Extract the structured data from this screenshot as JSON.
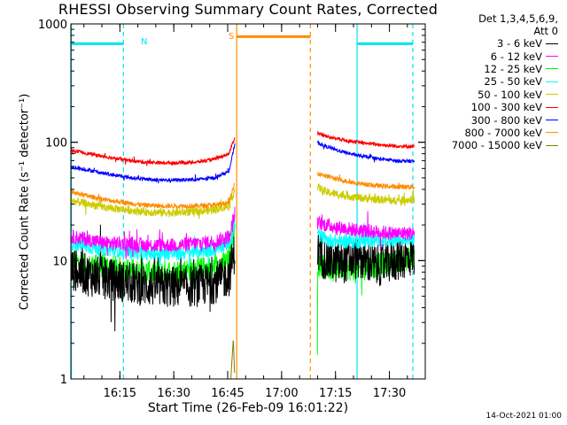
{
  "chart_data": {
    "type": "line",
    "title": "RHESSI Observing Summary Count Rates, Corrected",
    "xlabel": "Start Time (26-Feb-09 16:01:22)",
    "ylabel": "Corrected Count Rate (s⁻¹ detector⁻¹)",
    "yscale": "log",
    "ylim": [
      1,
      1000
    ],
    "yticks": [
      "1",
      "10",
      "100",
      "1000"
    ],
    "xlim_minutes_from_start": [
      0,
      98.6
    ],
    "xticks": [
      "16:15",
      "16:30",
      "16:45",
      "17:00",
      "17:15",
      "17:30"
    ],
    "legend_header": [
      "Det 1,3,4,5,6,9,",
      "Att 0"
    ],
    "legend_position": "right",
    "flag_markers": [
      {
        "label": "N",
        "color": "#00e5ee"
      },
      {
        "label": "S",
        "color": "#ff8c00"
      }
    ],
    "flag_lines": [
      {
        "name": "night-band",
        "color": "#00e5ee",
        "level": 680,
        "start": "16:01:22",
        "end": "16:16:00"
      },
      {
        "name": "saa-band",
        "color": "#ff8c00",
        "level": 780,
        "start": "16:47:30",
        "end": "17:08:00"
      },
      {
        "name": "night-band-2",
        "color": "#00e5ee",
        "level": 680,
        "start": "17:21:00",
        "end": "17:36:30"
      }
    ],
    "vertical_markers": [
      {
        "time": "16:01:30",
        "color": "#00e5ee",
        "style": "solid"
      },
      {
        "time": "16:16:00",
        "color": "#00e5ee",
        "style": "dashed"
      },
      {
        "time": "16:47:30",
        "color": "#ff8c00",
        "style": "solid"
      },
      {
        "time": "17:08:00",
        "color": "#ff8c00",
        "style": "dashed"
      },
      {
        "time": "17:21:00",
        "color": "#00e5ee",
        "style": "solid"
      },
      {
        "time": "17:36:30",
        "color": "#00e5ee",
        "style": "dashed"
      }
    ],
    "segments": [
      {
        "start": "16:01:22",
        "end": "16:46:55"
      },
      {
        "start": "17:10:00",
        "end": "17:37:00"
      }
    ],
    "series": [
      {
        "name": "3 - 6 keV",
        "color": "#000000",
        "points_seg1": [
          [
            0,
            8.5
          ],
          [
            5,
            7.5
          ],
          [
            10,
            7
          ],
          [
            15,
            6.6
          ],
          [
            20,
            6.2
          ],
          [
            25,
            6
          ],
          [
            30,
            6
          ],
          [
            35,
            6.1
          ],
          [
            40,
            6.5
          ],
          [
            44,
            7.5
          ],
          [
            45.6,
            12
          ]
        ],
        "points_seg2": [
          [
            68.6,
            12
          ],
          [
            71,
            10
          ],
          [
            75,
            9.5
          ],
          [
            80,
            10.5
          ],
          [
            85,
            9
          ],
          [
            90,
            10
          ],
          [
            95,
            11
          ],
          [
            95.6,
            11
          ]
        ],
        "noise": 0.18
      },
      {
        "name": "6 - 12 keV",
        "color": "#ff00ff",
        "points_seg1": [
          [
            0,
            16
          ],
          [
            5,
            15
          ],
          [
            10,
            14
          ],
          [
            15,
            14
          ],
          [
            20,
            13.5
          ],
          [
            25,
            13.5
          ],
          [
            30,
            13.5
          ],
          [
            35,
            14
          ],
          [
            40,
            14.5
          ],
          [
            44,
            16
          ],
          [
            45.6,
            25
          ]
        ],
        "points_seg2": [
          [
            68.6,
            21
          ],
          [
            71,
            20
          ],
          [
            75,
            19
          ],
          [
            80,
            18
          ],
          [
            85,
            17.5
          ],
          [
            90,
            17
          ],
          [
            95.6,
            17
          ]
        ],
        "noise": 0.06
      },
      {
        "name": "12 - 25 keV",
        "color": "#00ff00",
        "points_seg1": [
          [
            0,
            10
          ],
          [
            5,
            9
          ],
          [
            10,
            9
          ],
          [
            15,
            8.5
          ],
          [
            20,
            8
          ],
          [
            25,
            8
          ],
          [
            30,
            8.2
          ],
          [
            35,
            8.5
          ],
          [
            40,
            8.8
          ],
          [
            44,
            10
          ],
          [
            45.6,
            22
          ]
        ],
        "points_seg2": [
          [
            68.6,
            2
          ],
          [
            68.7,
            9
          ],
          [
            70,
            9
          ],
          [
            75,
            8.5
          ],
          [
            80,
            8.5
          ],
          [
            85,
            9
          ],
          [
            90,
            10
          ],
          [
            95.6,
            10.5
          ]
        ],
        "noise": 0.1
      },
      {
        "name": "25 - 50 keV",
        "color": "#00ffff",
        "points_seg1": [
          [
            0,
            14
          ],
          [
            5,
            13
          ],
          [
            10,
            12.5
          ],
          [
            15,
            12
          ],
          [
            20,
            11.5
          ],
          [
            25,
            11.5
          ],
          [
            30,
            11.5
          ],
          [
            35,
            12
          ],
          [
            40,
            12.5
          ],
          [
            44,
            14
          ],
          [
            45.6,
            20
          ]
        ],
        "points_seg2": [
          [
            68.6,
            17
          ],
          [
            71,
            15
          ],
          [
            75,
            14.5
          ],
          [
            80,
            14.5
          ],
          [
            85,
            15
          ],
          [
            90,
            15
          ],
          [
            95.6,
            15.5
          ]
        ],
        "noise": 0.06
      },
      {
        "name": "50 - 100 keV",
        "color": "#cccc00",
        "points_seg1": [
          [
            0,
            32
          ],
          [
            5,
            30
          ],
          [
            10,
            28
          ],
          [
            15,
            27
          ],
          [
            20,
            26
          ],
          [
            25,
            25.5
          ],
          [
            30,
            25.5
          ],
          [
            35,
            26
          ],
          [
            40,
            27
          ],
          [
            44,
            29
          ],
          [
            45.6,
            40
          ]
        ],
        "points_seg2": [
          [
            68.6,
            42
          ],
          [
            71,
            38
          ],
          [
            75,
            36
          ],
          [
            80,
            34
          ],
          [
            85,
            33
          ],
          [
            90,
            32
          ],
          [
            95.6,
            33
          ]
        ],
        "noise": 0.035
      },
      {
        "name": "100 - 300 keV",
        "color": "#ff0000",
        "points_seg1": [
          [
            0,
            85
          ],
          [
            5,
            80
          ],
          [
            10,
            75
          ],
          [
            15,
            71
          ],
          [
            20,
            68
          ],
          [
            25,
            67
          ],
          [
            30,
            67
          ],
          [
            35,
            68
          ],
          [
            40,
            72
          ],
          [
            44,
            80
          ],
          [
            45.6,
            110
          ]
        ],
        "points_seg2": [
          [
            68.6,
            120
          ],
          [
            71,
            112
          ],
          [
            75,
            106
          ],
          [
            80,
            100
          ],
          [
            85,
            96
          ],
          [
            90,
            93
          ],
          [
            95.6,
            92
          ]
        ],
        "noise": 0.015
      },
      {
        "name": "300 - 800 keV",
        "color": "#0000ff",
        "points_seg1": [
          [
            0,
            62
          ],
          [
            5,
            58
          ],
          [
            10,
            54
          ],
          [
            15,
            51
          ],
          [
            20,
            49
          ],
          [
            25,
            48
          ],
          [
            30,
            48
          ],
          [
            35,
            48.5
          ],
          [
            40,
            50
          ],
          [
            44,
            57
          ],
          [
            45.6,
            95
          ]
        ],
        "points_seg2": [
          [
            68.6,
            100
          ],
          [
            71,
            92
          ],
          [
            75,
            84
          ],
          [
            80,
            77
          ],
          [
            85,
            73
          ],
          [
            90,
            70
          ],
          [
            95.6,
            69
          ]
        ],
        "noise": 0.015
      },
      {
        "name": "800 - 7000 keV",
        "color": "#ff8c00",
        "points_seg1": [
          [
            0,
            38
          ],
          [
            5,
            35
          ],
          [
            10,
            32.5
          ],
          [
            15,
            31
          ],
          [
            20,
            29.5
          ],
          [
            25,
            29
          ],
          [
            30,
            29
          ],
          [
            35,
            29
          ],
          [
            40,
            29.5
          ],
          [
            44,
            31
          ],
          [
            45.6,
            45
          ]
        ],
        "points_seg2": [
          [
            68.6,
            55
          ],
          [
            71,
            52
          ],
          [
            75,
            48
          ],
          [
            80,
            45
          ],
          [
            85,
            43
          ],
          [
            90,
            42
          ],
          [
            95.6,
            42
          ]
        ],
        "noise": 0.02
      },
      {
        "name": "7000 - 15000 keV",
        "color": "#808000",
        "points_seg1": [
          [
            44.5,
            1
          ],
          [
            45.2,
            2.2
          ],
          [
            45.6,
            1
          ]
        ],
        "points_seg2": [],
        "noise": 0
      }
    ],
    "footer_date": "14-Oct-2021 01:00"
  }
}
